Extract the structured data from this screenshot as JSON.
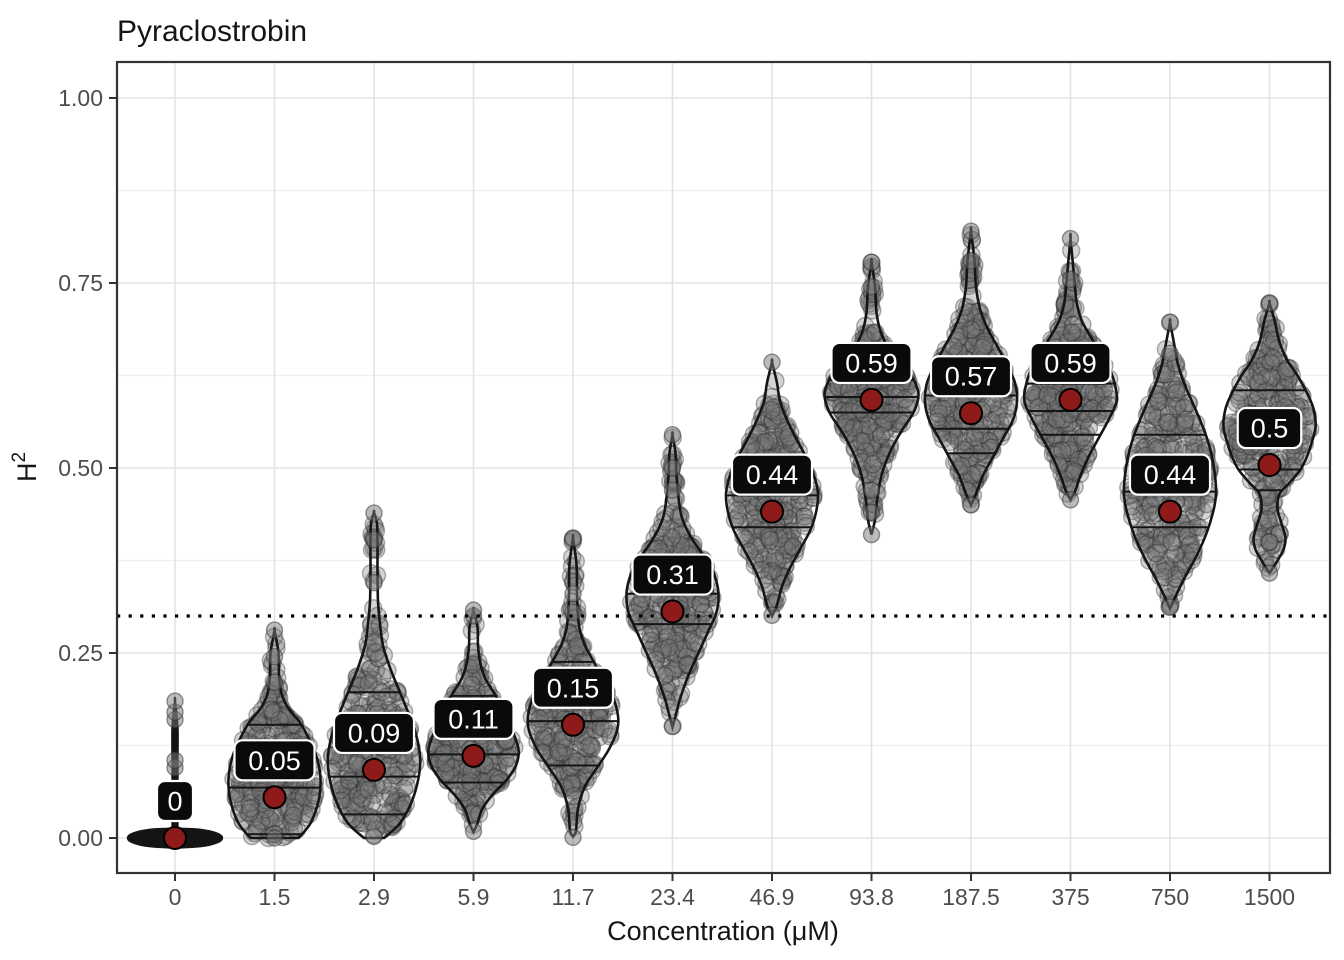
{
  "chart_data": {
    "type": "violin",
    "title": "Pyraclostrobin",
    "xlabel": "Concentration (μM)",
    "ylabel": {
      "base": "H",
      "sup": "2"
    },
    "x_tick_labels": [
      "0",
      "1.5",
      "2.9",
      "5.9",
      "11.7",
      "23.4",
      "46.9",
      "93.8",
      "187.5",
      "375",
      "750",
      "1500"
    ],
    "y_ticks": [
      {
        "value": 0.0,
        "label": "0.00"
      },
      {
        "value": 0.25,
        "label": "0.25"
      },
      {
        "value": 0.5,
        "label": "0.50"
      },
      {
        "value": 0.75,
        "label": "0.75"
      },
      {
        "value": 1.0,
        "label": "1.00"
      }
    ],
    "y_minor_ticks": [
      0.125,
      0.375,
      0.625,
      0.875
    ],
    "ylim": [
      -0.047,
      1.048
    ],
    "grid": true,
    "legend_position": "none",
    "threshold_line": {
      "value": 0.3,
      "style": "dotted"
    },
    "colors": {
      "mean_point": "#8E1A1A",
      "mean_point_stroke": "#000000",
      "label_bg": "#0A0A0A",
      "label_text": "#FFFFFF",
      "label_border": "#FFFFFF",
      "violin_outline": "#151515",
      "violin_fill": "#FFFFFF",
      "jitter_fill": "#7A7A7A",
      "jitter_stroke": "#2E2E2E",
      "grid_major": "#E3E3E3",
      "grid_minor": "#EFEFEF",
      "panel_border": "#333333",
      "axis_text": "#4D4D4D",
      "title_text": "#151515",
      "threshold": "#000000",
      "solid_violin": "#141414"
    },
    "violins": [
      {
        "x": "0",
        "mean": 0.0,
        "mean_label": "0",
        "quartiles": [],
        "solid": true,
        "n": 0,
        "profile": [
          [
            -0.013,
            1
          ],
          [
            -0.011,
            26
          ],
          [
            -0.006,
            42
          ],
          [
            0,
            47
          ],
          [
            0.006,
            42
          ],
          [
            0.011,
            26
          ],
          [
            0.013,
            3
          ],
          [
            0.018,
            2.5
          ],
          [
            0.05,
            2.5
          ],
          [
            0.1,
            2.5
          ],
          [
            0.15,
            2.5
          ],
          [
            0.185,
            0
          ]
        ],
        "extra_points": [
          0.095,
          0.105,
          0.16,
          0.17,
          0.185
        ]
      },
      {
        "x": "1.5",
        "mean": 0.055,
        "mean_label": "0.05",
        "quartiles": [
          0.005,
          0.068,
          0.153
        ],
        "solid": false,
        "n": 290,
        "profile": [
          [
            0,
            24
          ],
          [
            0.02,
            36
          ],
          [
            0.05,
            44
          ],
          [
            0.08,
            46
          ],
          [
            0.11,
            42
          ],
          [
            0.135,
            34
          ],
          [
            0.155,
            26
          ],
          [
            0.175,
            14
          ],
          [
            0.195,
            7
          ],
          [
            0.22,
            4.5
          ],
          [
            0.25,
            4
          ],
          [
            0.28,
            0
          ]
        ],
        "extra_points": [
          0.0,
          0.21,
          0.245,
          0.281
        ]
      },
      {
        "x": "2.9",
        "mean": 0.092,
        "mean_label": "0.09",
        "quartiles": [
          0.032,
          0.083,
          0.197
        ],
        "solid": false,
        "n": 300,
        "profile": [
          [
            0,
            10
          ],
          [
            0.02,
            26
          ],
          [
            0.05,
            38
          ],
          [
            0.085,
            45
          ],
          [
            0.11,
            46
          ],
          [
            0.14,
            42
          ],
          [
            0.17,
            34
          ],
          [
            0.2,
            25
          ],
          [
            0.23,
            16
          ],
          [
            0.26,
            9
          ],
          [
            0.29,
            6
          ],
          [
            0.32,
            4
          ],
          [
            0.36,
            3.5
          ],
          [
            0.4,
            3.5
          ],
          [
            0.425,
            3
          ],
          [
            0.44,
            0
          ]
        ],
        "extra_points": [
          0.002,
          0.345,
          0.403,
          0.439
        ]
      },
      {
        "x": "5.9",
        "mean": 0.111,
        "mean_label": "0.11",
        "quartiles": [
          0.075,
          0.113,
          0.192
        ],
        "solid": false,
        "n": 290,
        "profile": [
          [
            0.008,
            0
          ],
          [
            0.02,
            4
          ],
          [
            0.04,
            9
          ],
          [
            0.06,
            20
          ],
          [
            0.08,
            34
          ],
          [
            0.1,
            43
          ],
          [
            0.12,
            45
          ],
          [
            0.145,
            39
          ],
          [
            0.17,
            31
          ],
          [
            0.195,
            21
          ],
          [
            0.215,
            12
          ],
          [
            0.235,
            7
          ],
          [
            0.26,
            4.5
          ],
          [
            0.285,
            4
          ],
          [
            0.308,
            0
          ]
        ],
        "extra_points": [
          0.009,
          0.3,
          0.308
        ]
      },
      {
        "x": "11.7",
        "mean": 0.153,
        "mean_label": "0.15",
        "quartiles": [
          0.098,
          0.158,
          0.238
        ],
        "solid": false,
        "n": 300,
        "profile": [
          [
            0.002,
            0
          ],
          [
            0.01,
            3
          ],
          [
            0.04,
            5
          ],
          [
            0.07,
            12
          ],
          [
            0.095,
            24
          ],
          [
            0.12,
            36
          ],
          [
            0.145,
            44
          ],
          [
            0.165,
            45
          ],
          [
            0.19,
            40
          ],
          [
            0.215,
            30
          ],
          [
            0.24,
            20
          ],
          [
            0.26,
            12
          ],
          [
            0.28,
            7
          ],
          [
            0.3,
            5
          ],
          [
            0.33,
            4
          ],
          [
            0.37,
            3.5
          ],
          [
            0.405,
            0
          ]
        ],
        "extra_points": [
          0.001,
          0.305,
          0.33,
          0.405
        ]
      },
      {
        "x": "23.4",
        "mean": 0.306,
        "mean_label": "0.31",
        "quartiles": [
          0.289,
          0.33,
          0.376
        ],
        "solid": false,
        "n": 320,
        "profile": [
          [
            0.15,
            0
          ],
          [
            0.17,
            4
          ],
          [
            0.19,
            8
          ],
          [
            0.22,
            16
          ],
          [
            0.25,
            26
          ],
          [
            0.28,
            36
          ],
          [
            0.305,
            44
          ],
          [
            0.33,
            46
          ],
          [
            0.355,
            42
          ],
          [
            0.375,
            34
          ],
          [
            0.395,
            24
          ],
          [
            0.415,
            15
          ],
          [
            0.435,
            9
          ],
          [
            0.46,
            6
          ],
          [
            0.49,
            4
          ],
          [
            0.52,
            3
          ],
          [
            0.545,
            0
          ]
        ],
        "extra_points": [
          0.151,
          0.47,
          0.5,
          0.545
        ]
      },
      {
        "x": "46.9",
        "mean": 0.441,
        "mean_label": "0.44",
        "quartiles": [
          0.42,
          0.463,
          0.512
        ],
        "solid": false,
        "n": 320,
        "profile": [
          [
            0.3,
            0
          ],
          [
            0.315,
            5
          ],
          [
            0.34,
            10
          ],
          [
            0.365,
            18
          ],
          [
            0.39,
            28
          ],
          [
            0.415,
            38
          ],
          [
            0.44,
            44
          ],
          [
            0.465,
            46
          ],
          [
            0.49,
            42
          ],
          [
            0.515,
            34
          ],
          [
            0.54,
            24
          ],
          [
            0.565,
            15
          ],
          [
            0.59,
            8
          ],
          [
            0.615,
            5
          ],
          [
            0.643,
            0
          ]
        ],
        "extra_points": [
          0.301,
          0.643
        ]
      },
      {
        "x": "93.8",
        "mean": 0.592,
        "mean_label": "0.59",
        "quartiles": [
          0.575,
          0.596,
          0.619
        ],
        "solid": false,
        "n": 330,
        "profile": [
          [
            0.41,
            0
          ],
          [
            0.43,
            3.5
          ],
          [
            0.46,
            6
          ],
          [
            0.49,
            10
          ],
          [
            0.52,
            18
          ],
          [
            0.55,
            30
          ],
          [
            0.575,
            42
          ],
          [
            0.6,
            47
          ],
          [
            0.625,
            40
          ],
          [
            0.645,
            28
          ],
          [
            0.665,
            16
          ],
          [
            0.685,
            9
          ],
          [
            0.71,
            5
          ],
          [
            0.745,
            3.5
          ],
          [
            0.778,
            0
          ]
        ],
        "extra_points": [
          0.41,
          0.44,
          0.47,
          0.745,
          0.778
        ]
      },
      {
        "x": "187.5",
        "mean": 0.574,
        "mean_label": "0.57",
        "quartiles": [
          0.52,
          0.553,
          0.598
        ],
        "solid": false,
        "n": 330,
        "profile": [
          [
            0.45,
            0
          ],
          [
            0.465,
            5
          ],
          [
            0.49,
            12
          ],
          [
            0.515,
            22
          ],
          [
            0.54,
            32
          ],
          [
            0.565,
            42
          ],
          [
            0.59,
            46
          ],
          [
            0.615,
            44
          ],
          [
            0.64,
            36
          ],
          [
            0.665,
            26
          ],
          [
            0.69,
            16
          ],
          [
            0.715,
            9
          ],
          [
            0.745,
            5
          ],
          [
            0.78,
            3.5
          ],
          [
            0.82,
            0
          ]
        ],
        "extra_points": [
          0.45,
          0.78,
          0.82
        ]
      },
      {
        "x": "375",
        "mean": 0.592,
        "mean_label": "0.59",
        "quartiles": [
          0.545,
          0.577,
          0.614
        ],
        "solid": false,
        "n": 330,
        "profile": [
          [
            0.457,
            0
          ],
          [
            0.47,
            5
          ],
          [
            0.49,
            10
          ],
          [
            0.515,
            18
          ],
          [
            0.54,
            28
          ],
          [
            0.565,
            38
          ],
          [
            0.59,
            46
          ],
          [
            0.615,
            44
          ],
          [
            0.64,
            37
          ],
          [
            0.66,
            28
          ],
          [
            0.68,
            19
          ],
          [
            0.7,
            11
          ],
          [
            0.725,
            6
          ],
          [
            0.76,
            3.5
          ],
          [
            0.81,
            0
          ]
        ],
        "extra_points": [
          0.457,
          0.755,
          0.81
        ]
      },
      {
        "x": "750",
        "mean": 0.441,
        "mean_label": "0.44",
        "quartiles": [
          0.42,
          0.468,
          0.545
        ],
        "solid": false,
        "n": 340,
        "profile": [
          [
            0.31,
            0
          ],
          [
            0.325,
            5
          ],
          [
            0.35,
            14
          ],
          [
            0.38,
            26
          ],
          [
            0.41,
            36
          ],
          [
            0.44,
            43
          ],
          [
            0.465,
            46
          ],
          [
            0.49,
            45
          ],
          [
            0.515,
            42
          ],
          [
            0.54,
            37
          ],
          [
            0.565,
            30
          ],
          [
            0.59,
            22
          ],
          [
            0.615,
            14
          ],
          [
            0.64,
            8
          ],
          [
            0.665,
            4.5
          ],
          [
            0.697,
            0
          ]
        ],
        "extra_points": [
          0.312,
          0.655,
          0.697
        ]
      },
      {
        "x": "1500",
        "mean": 0.504,
        "mean_label": "0.5",
        "quartiles": [
          0.47,
          0.498,
          0.605
        ],
        "solid": false,
        "n": 300,
        "profile": [
          [
            0.358,
            0
          ],
          [
            0.375,
            8
          ],
          [
            0.39,
            14
          ],
          [
            0.405,
            16
          ],
          [
            0.425,
            12
          ],
          [
            0.445,
            8
          ],
          [
            0.465,
            10
          ],
          [
            0.48,
            20
          ],
          [
            0.5,
            32
          ],
          [
            0.525,
            40
          ],
          [
            0.555,
            46
          ],
          [
            0.58,
            44
          ],
          [
            0.6,
            38
          ],
          [
            0.625,
            28
          ],
          [
            0.645,
            18
          ],
          [
            0.67,
            10
          ],
          [
            0.7,
            5
          ],
          [
            0.723,
            0
          ]
        ],
        "extra_points": [
          0.358,
          0.4,
          0.723
        ]
      }
    ],
    "label_nudge_y": 0.05
  }
}
